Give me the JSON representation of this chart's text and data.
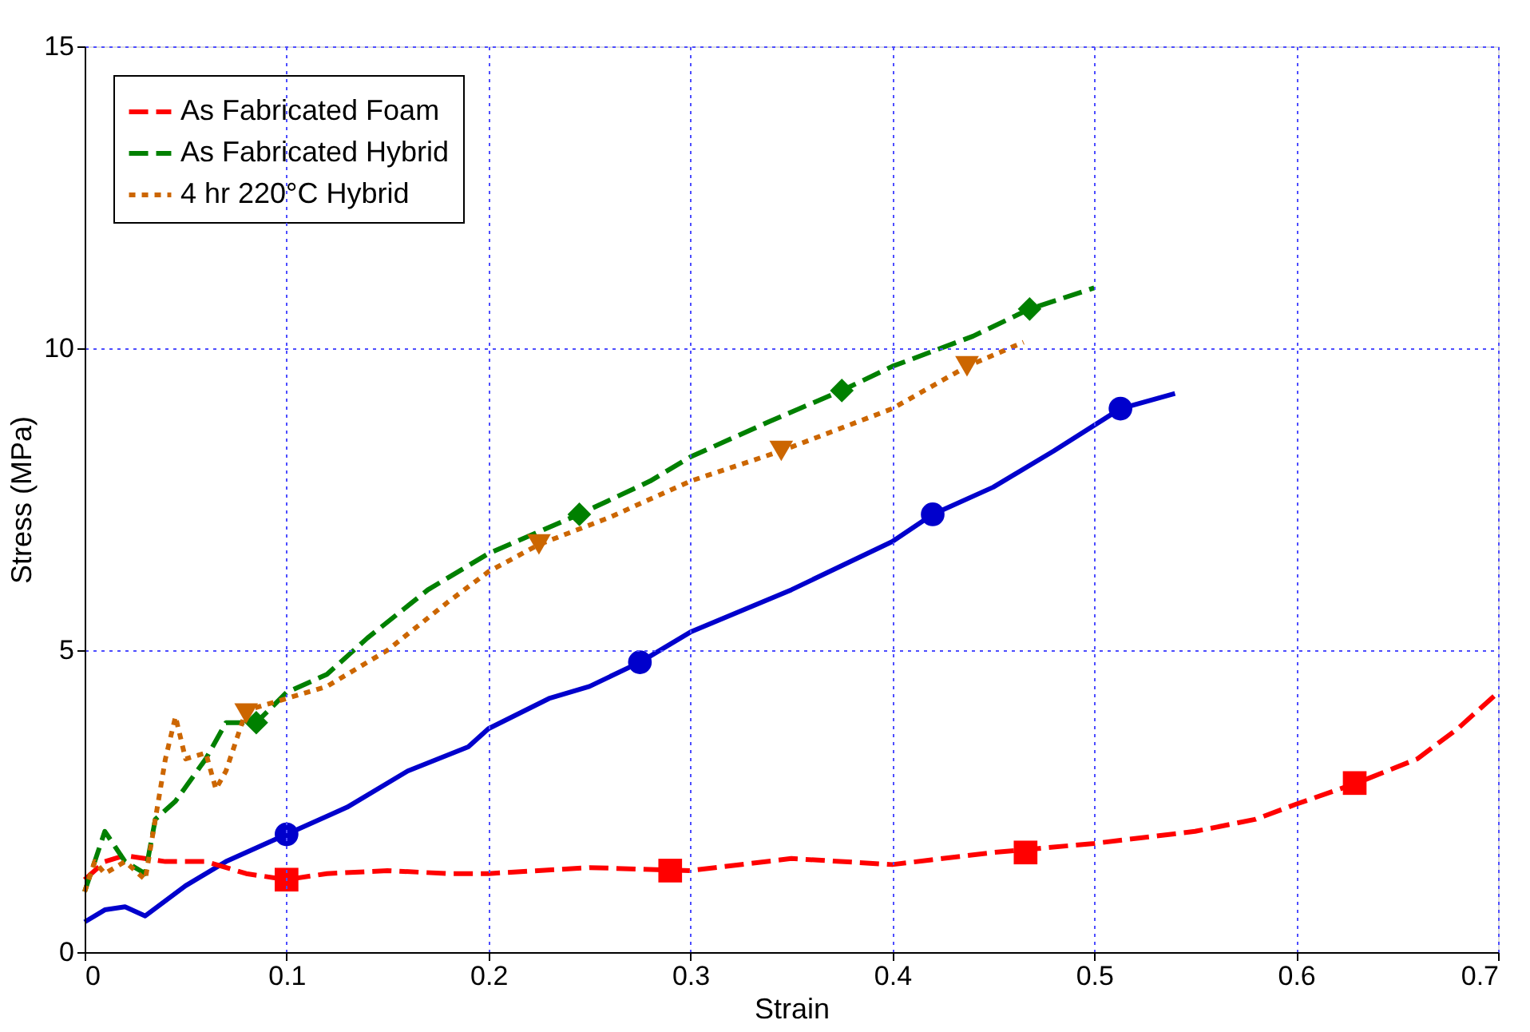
{
  "chart_data": {
    "type": "line",
    "xlabel": "Strain",
    "ylabel": "Stress (MPa)",
    "xlim": [
      0,
      0.7
    ],
    "ylim": [
      0,
      15
    ],
    "xticks": [
      0,
      0.1,
      0.2,
      0.3,
      0.4,
      0.5,
      0.6,
      0.7
    ],
    "yticks": [
      0,
      5,
      10,
      15
    ],
    "grid": true,
    "legend": "top left",
    "series": [
      {
        "color": "#0000cc",
        "line_style": "solid",
        "x": [
          0,
          0.01,
          0.02,
          0.03,
          0.05,
          0.07,
          0.1,
          0.13,
          0.16,
          0.19,
          0.2,
          0.23,
          0.25,
          0.275,
          0.3,
          0.35,
          0.4,
          0.42,
          0.45,
          0.48,
          0.513,
          0.54
        ],
        "values": [
          0.5,
          0.7,
          0.75,
          0.6,
          1.1,
          1.5,
          1.95,
          2.4,
          3.0,
          3.4,
          3.7,
          4.2,
          4.4,
          4.8,
          5.3,
          6.0,
          6.8,
          7.25,
          7.7,
          8.3,
          9.0,
          9.25
        ]
      },
      {
        "name": "As Fabricated Foam",
        "color": "#ff0000",
        "line_style": "dashed",
        "x": [
          0,
          0.01,
          0.02,
          0.04,
          0.06,
          0.08,
          0.1,
          0.12,
          0.15,
          0.18,
          0.2,
          0.25,
          0.3,
          0.35,
          0.4,
          0.45,
          0.5,
          0.55,
          0.58,
          0.6,
          0.63,
          0.66,
          0.68,
          0.7
        ],
        "values": [
          1.2,
          1.5,
          1.6,
          1.5,
          1.5,
          1.3,
          1.2,
          1.3,
          1.35,
          1.3,
          1.3,
          1.4,
          1.35,
          1.55,
          1.45,
          1.65,
          1.8,
          2.0,
          2.2,
          2.45,
          2.8,
          3.2,
          3.7,
          4.3
        ]
      },
      {
        "name": "As Fabricated Hybrid",
        "color": "#008000",
        "line_style": "dashed",
        "x": [
          0,
          0.005,
          0.01,
          0.02,
          0.03,
          0.035,
          0.045,
          0.06,
          0.07,
          0.085,
          0.1,
          0.12,
          0.14,
          0.17,
          0.2,
          0.245,
          0.28,
          0.3,
          0.34,
          0.375,
          0.4,
          0.44,
          0.468,
          0.5
        ],
        "values": [
          1.0,
          1.5,
          2.0,
          1.5,
          1.3,
          2.2,
          2.5,
          3.2,
          3.8,
          3.8,
          4.3,
          4.6,
          5.2,
          6.0,
          6.6,
          7.25,
          7.8,
          8.2,
          8.8,
          9.3,
          9.7,
          10.2,
          10.65,
          11.0
        ]
      },
      {
        "name": "4 hr 220°C Hybrid",
        "color": "#cc6600",
        "line_style": "dotted",
        "x": [
          0,
          0.005,
          0.01,
          0.02,
          0.03,
          0.04,
          0.045,
          0.05,
          0.06,
          0.065,
          0.07,
          0.08,
          0.1,
          0.12,
          0.15,
          0.18,
          0.2,
          0.225,
          0.26,
          0.3,
          0.345,
          0.4,
          0.437,
          0.465
        ],
        "values": [
          1.0,
          1.5,
          1.3,
          1.5,
          1.2,
          3.2,
          3.9,
          3.2,
          3.3,
          2.7,
          3.0,
          4.0,
          4.2,
          4.4,
          5.0,
          5.8,
          6.3,
          6.75,
          7.2,
          7.8,
          8.3,
          9.0,
          9.7,
          10.1
        ]
      },
      {
        "type": "scatter",
        "marker": "circle",
        "color": "#0000cc",
        "x": [
          0.1,
          0.275,
          0.42,
          0.513
        ],
        "values": [
          1.95,
          4.8,
          7.25,
          9.0
        ]
      },
      {
        "type": "scatter",
        "marker": "square",
        "color": "#ff0000",
        "x": [
          0.1,
          0.29,
          0.466,
          0.629
        ],
        "values": [
          1.2,
          1.35,
          1.65,
          2.8
        ]
      },
      {
        "type": "scatter",
        "marker": "diamond",
        "color": "#008000",
        "x": [
          0.085,
          0.245,
          0.375,
          0.468
        ],
        "values": [
          3.8,
          7.25,
          9.3,
          10.65
        ]
      },
      {
        "type": "scatter",
        "marker": "triangle",
        "color": "#cc6600",
        "x": [
          0.08,
          0.225,
          0.345,
          0.437
        ],
        "values": [
          3.95,
          6.75,
          8.3,
          9.7
        ]
      }
    ]
  }
}
